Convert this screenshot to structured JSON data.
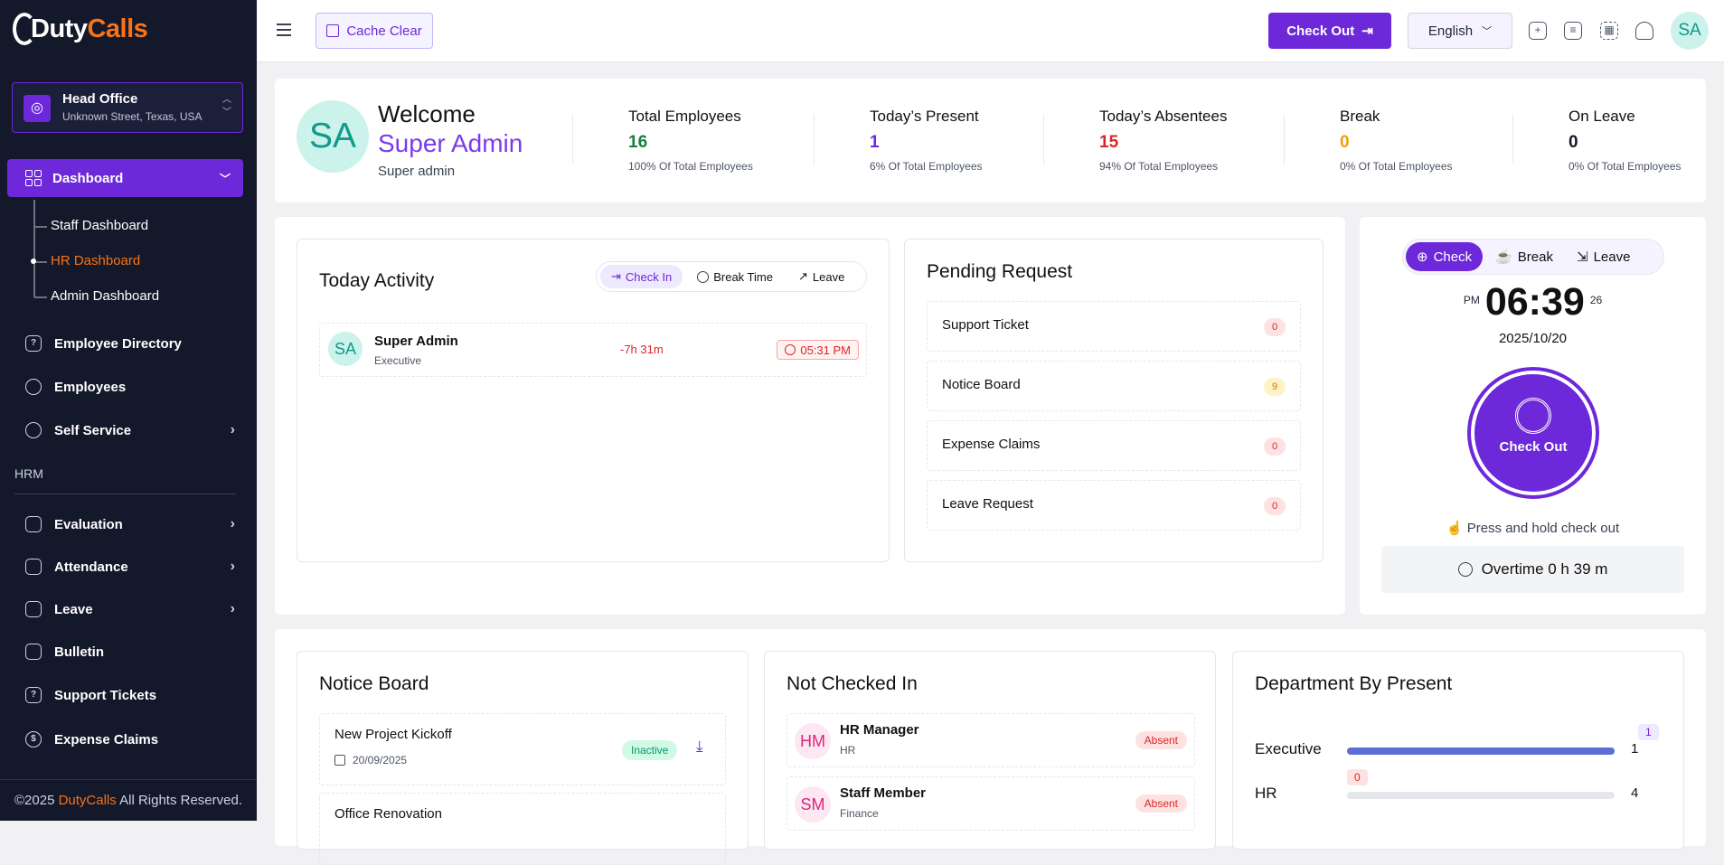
{
  "brand": {
    "part1": "Duty",
    "part2": "Calls"
  },
  "branch": {
    "name": "Head Office",
    "address": "Unknown Street, Texas, USA"
  },
  "sidebar": {
    "dashboard_label": "Dashboard",
    "sub_items": [
      "Staff Dashboard",
      "HR Dashboard",
      "Admin Dashboard"
    ],
    "items_top": [
      {
        "label": "Employee Directory",
        "icon": "help-icon"
      },
      {
        "label": "Employees",
        "icon": "users-icon"
      },
      {
        "label": "Self Service",
        "icon": "user-circle-icon"
      }
    ],
    "section_label": "HRM",
    "items_hrm": [
      {
        "label": "Evaluation",
        "icon": "evaluation-icon"
      },
      {
        "label": "Attendance",
        "icon": "attendance-icon"
      },
      {
        "label": "Leave",
        "icon": "leave-icon"
      },
      {
        "label": "Bulletin",
        "icon": "bulletin-icon"
      },
      {
        "label": "Support Tickets",
        "icon": "support-icon"
      },
      {
        "label": "Expense Claims",
        "icon": "dollar-icon"
      }
    ],
    "footer_pre": "©2025 ",
    "footer_brand": "DutyCalls",
    "footer_post": " All Rights Reserved."
  },
  "topbar": {
    "cache_label": "Cache Clear",
    "checkout_label": "Check Out",
    "language": "English",
    "avatar": "SA"
  },
  "welcome": {
    "avatar": "SA",
    "greeting": "Welcome",
    "name": "Super Admin",
    "role": "Super admin"
  },
  "stats": [
    {
      "title": "Total Employees",
      "value": "16",
      "sub": "100% Of Total Employees",
      "color": "#15803d"
    },
    {
      "title": "Today’s Present",
      "value": "1",
      "sub": "6% Of Total Employees",
      "color": "#6d28d9"
    },
    {
      "title": "Today’s Absentees",
      "value": "15",
      "sub": "94% Of Total Employees",
      "color": "#dc2626"
    },
    {
      "title": "Break",
      "value": "0",
      "sub": "0% Of Total Employees",
      "color": "#f59e0b"
    },
    {
      "title": "On Leave",
      "value": "0",
      "sub": "0% Of Total Employees",
      "color": "#111827"
    }
  ],
  "activity": {
    "title": "Today Activity",
    "tabs": [
      "Check In",
      "Break Time",
      "Leave"
    ],
    "row": {
      "avatar": "SA",
      "name": "Super Admin",
      "dept": "Executive",
      "diff": "-7h 31m",
      "time": "05:31 PM"
    }
  },
  "pending": {
    "title": "Pending Request",
    "rows": [
      {
        "label": "Support Ticket",
        "count": "0",
        "tone": "red"
      },
      {
        "label": "Notice Board",
        "count": "9",
        "tone": "yel"
      },
      {
        "label": "Expense Claims",
        "count": "0",
        "tone": "red"
      },
      {
        "label": "Leave Request",
        "count": "0",
        "tone": "red"
      }
    ]
  },
  "clock": {
    "tabs": [
      "Check",
      "Break",
      "Leave"
    ],
    "ampm": "PM",
    "time": "06:39",
    "seconds": "26",
    "date": "2025/10/20",
    "button": "Check Out",
    "hint": "Press and hold check out",
    "overtime": "Overtime 0 h 39 m"
  },
  "notice": {
    "title": "Notice Board",
    "items": [
      {
        "title": "New Project Kickoff",
        "date": "20/09/2025",
        "status": "Inactive"
      },
      {
        "title": "Office Renovation"
      }
    ]
  },
  "not_checked": {
    "title": "Not Checked In",
    "rows": [
      {
        "initials": "HM",
        "name": "HR Manager",
        "dept": "HR",
        "status": "Absent"
      },
      {
        "initials": "SM",
        "name": "Staff Member",
        "dept": "Finance",
        "status": "Absent"
      }
    ]
  },
  "department": {
    "title": "Department By Present",
    "rows": [
      {
        "name": "Executive",
        "present": "1",
        "total": "1",
        "fraction": 1.0
      },
      {
        "name": "HR",
        "present": "0",
        "total": "4",
        "fraction": 0.0
      }
    ]
  }
}
